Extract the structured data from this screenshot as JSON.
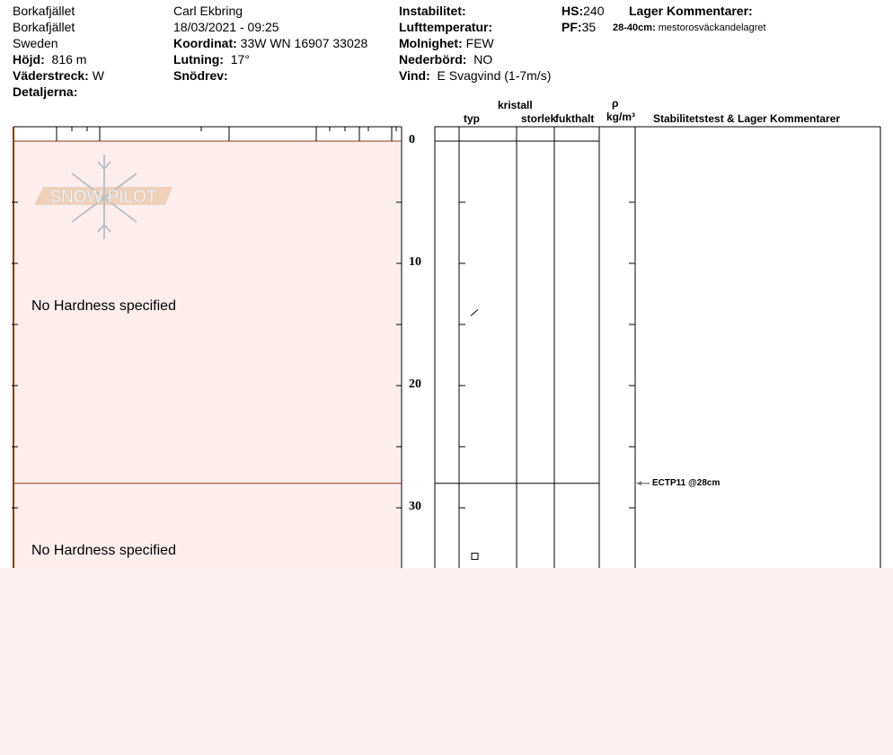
{
  "header": {
    "col1": [
      "Borkafjället",
      "Borkafjället",
      "Sweden"
    ],
    "elevation_label": "Höjd:",
    "elevation": "816 m",
    "aspect_label": "Väderstreck:",
    "aspect": "W",
    "details_label": "Detaljerna:",
    "observer": "Carl Ekbring",
    "datetime": "18/03/2021 - 09:25",
    "coord_label": "Koordinat:",
    "coord": "33W WN 16907 33028",
    "slope_label": "Lutning:",
    "slope": "17°",
    "drift_label": "Snödrev:",
    "instability_label": "Instabilitet:",
    "airtemp_label": "Lufttemperatur:",
    "sky_label": "Molnighet:",
    "sky": "FEW",
    "precip_label": "Nederbörd:",
    "precip": "NO",
    "wind_label": "Vind:",
    "wind": "E Svagvind (1-7m/s)",
    "hs_label": "HS:",
    "hs": "240",
    "pf_label": "PF:",
    "pf": "35",
    "layer_comments_label": "Lager Kommentarer:",
    "layer_comment_range": "28-40cm:",
    "layer_comment": "mestorosväckandelagret"
  },
  "logo_text": "SNOW PILOT",
  "columns": {
    "crystal": "kristall",
    "type": "typ",
    "size": "storlek",
    "moisture": "fukthalt",
    "rho": "ρ",
    "density_unit": "kg/m³",
    "stability": "Stabilitetstest & Lager Kommentarer"
  },
  "chart_data": {
    "type": "snow-profile",
    "depth_axis": {
      "ticks": [
        "0",
        "10",
        "20",
        "30"
      ],
      "range": [
        0,
        35
      ],
      "unit": "cm"
    },
    "layers": [
      {
        "top": 0,
        "bottom": 28,
        "hardness": "No Hardness specified",
        "grain_symbol": "slash",
        "grain_depth": 14
      },
      {
        "top": 28,
        "bottom": 40,
        "hardness": "No Hardness specified",
        "grain_symbol": "square",
        "grain_depth": 34
      }
    ],
    "tests": [
      {
        "label": "ECTP11 @28cm",
        "depth": 28
      }
    ],
    "colors": {
      "hardness_fill": "#fdeeee",
      "layer_line": "#8b3a1a"
    }
  }
}
